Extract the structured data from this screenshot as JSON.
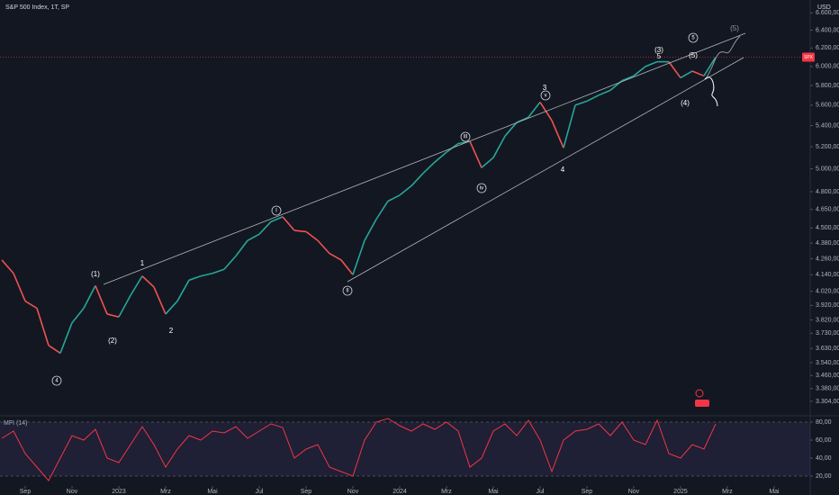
{
  "chart_data": [
    {
      "type": "line",
      "title": "S&P 500 Index, 1T, SP",
      "currency": "USD",
      "last_label": "SPX",
      "log_scale": true,
      "up_color": "#26a69a",
      "down_color": "#ef5350",
      "x": [
        -1,
        -0.5,
        0,
        0.5,
        1,
        1.5,
        2,
        2.5,
        3,
        3.5,
        4,
        4.5,
        5,
        5.5,
        6,
        6.5,
        7,
        7.5,
        8,
        8.5,
        9,
        9.5,
        10,
        10.5,
        11,
        11.5,
        12,
        12.5,
        13,
        13.5,
        14,
        14.5,
        15,
        15.5,
        16,
        16.5,
        17,
        17.5,
        18,
        18.5,
        19,
        19.5,
        20,
        20.5,
        21,
        21.5,
        22,
        22.5,
        23,
        23.5,
        24,
        24.5,
        25,
        25.5,
        26,
        26.5,
        27,
        27.5,
        28,
        28.5,
        29,
        29.5
      ],
      "values": [
        4250,
        4150,
        3950,
        3900,
        3650,
        3600,
        3800,
        3900,
        4060,
        3860,
        3840,
        3990,
        4130,
        4050,
        3860,
        3950,
        4100,
        4130,
        4150,
        4180,
        4280,
        4400,
        4450,
        4550,
        4590,
        4480,
        4470,
        4400,
        4300,
        4250,
        4140,
        4400,
        4570,
        4720,
        4770,
        4850,
        4960,
        5060,
        5150,
        5230,
        5250,
        5010,
        5100,
        5300,
        5430,
        5480,
        5630,
        5450,
        5190,
        5600,
        5640,
        5700,
        5750,
        5850,
        5900,
        6000,
        6050,
        6050,
        5880,
        5950,
        5900,
        6100
      ],
      "xlim": [
        -1.077,
        33.54
      ],
      "xticks": [
        {
          "value": 0,
          "label": "Sep"
        },
        {
          "value": 2,
          "label": "Nov"
        },
        {
          "value": 4,
          "label": "2023"
        },
        {
          "value": 6,
          "label": "Mrz"
        },
        {
          "value": 8,
          "label": "Mai"
        },
        {
          "value": 10,
          "label": "Jul"
        },
        {
          "value": 12,
          "label": "Sep"
        },
        {
          "value": 14,
          "label": "Nov"
        },
        {
          "value": 16,
          "label": "2024"
        },
        {
          "value": 18,
          "label": "Mrz"
        },
        {
          "value": 20,
          "label": "Mai"
        },
        {
          "value": 22,
          "label": "Jul"
        },
        {
          "value": 24,
          "label": "Sep"
        },
        {
          "value": 26,
          "label": "Nov"
        },
        {
          "value": 28,
          "label": "2025"
        },
        {
          "value": 30,
          "label": "Mrz"
        },
        {
          "value": 32,
          "label": "Mai"
        }
      ],
      "ylim": [
        3220,
        6700
      ],
      "yticks": [
        {
          "value": 6600,
          "label": "6.600,00"
        },
        {
          "value": 6400,
          "label": "6.400,00"
        },
        {
          "value": 6200,
          "label": "6.200,00"
        },
        {
          "value": 6000,
          "label": "6.000,00"
        },
        {
          "value": 5800,
          "label": "5.800,00"
        },
        {
          "value": 5600,
          "label": "5.600,00"
        },
        {
          "value": 5400,
          "label": "5.400,00"
        },
        {
          "value": 5200,
          "label": "5.200,00"
        },
        {
          "value": 5000,
          "label": "5.000,00"
        },
        {
          "value": 4800,
          "label": "4.800,00"
        },
        {
          "value": 4650,
          "label": "4.650,00"
        },
        {
          "value": 4500,
          "label": "4.500,00"
        },
        {
          "value": 4380,
          "label": "4.380,00"
        },
        {
          "value": 4260,
          "label": "4.260,00"
        },
        {
          "value": 4140,
          "label": "4.140,00"
        },
        {
          "value": 4020,
          "label": "4.020,00"
        },
        {
          "value": 3920,
          "label": "3.920,00"
        },
        {
          "value": 3820,
          "label": "3.820,00"
        },
        {
          "value": 3730,
          "label": "3.730,00"
        },
        {
          "value": 3630,
          "label": "3.630,00"
        },
        {
          "value": 3540,
          "label": "3.540,00"
        },
        {
          "value": 3460,
          "label": "3.460,00"
        },
        {
          "value": 3380,
          "label": "3.380,00"
        },
        {
          "value": 3304,
          "label": "3.304,00"
        }
      ],
      "wave_labels": [
        "(1)",
        "(2)",
        "1",
        "2",
        "4",
        "I",
        "II",
        "III",
        "iv",
        "v",
        "3",
        "4",
        "(3)",
        "5",
        "5",
        "(5)",
        "(4)",
        "(5)"
      ]
    },
    {
      "type": "line",
      "title": "MFI (14)",
      "color": "#f23645",
      "x": [
        -1,
        -0.5,
        0,
        0.5,
        1,
        1.5,
        2,
        2.5,
        3,
        3.5,
        4,
        4.5,
        5,
        5.5,
        6,
        6.5,
        7,
        7.5,
        8,
        8.5,
        9,
        9.5,
        10,
        10.5,
        11,
        11.5,
        12,
        12.5,
        13,
        13.5,
        14,
        14.5,
        15,
        15.5,
        16,
        16.5,
        17,
        17.5,
        18,
        18.5,
        19,
        19.5,
        20,
        20.5,
        21,
        21.5,
        22,
        22.5,
        23,
        23.5,
        24,
        24.5,
        25,
        25.5,
        26,
        26.5,
        27,
        27.5,
        28,
        28.5,
        29,
        29.5
      ],
      "values": [
        62,
        70,
        45,
        30,
        15,
        40,
        65,
        60,
        72,
        40,
        35,
        55,
        75,
        55,
        30,
        50,
        65,
        60,
        70,
        68,
        75,
        62,
        70,
        78,
        74,
        40,
        50,
        55,
        30,
        25,
        20,
        60,
        80,
        84,
        76,
        70,
        78,
        72,
        80,
        70,
        30,
        40,
        70,
        78,
        65,
        82,
        60,
        25,
        60,
        70,
        72,
        78,
        65,
        80,
        60,
        55,
        82,
        45,
        40,
        55,
        50,
        78
      ],
      "xlim": [
        -1.077,
        33.54
      ],
      "ylim": [
        9,
        86
      ],
      "band": [
        20,
        80
      ],
      "yticks": [
        {
          "value": 80,
          "label": "80,00"
        },
        {
          "value": 60,
          "label": "60,00"
        },
        {
          "value": 40,
          "label": "40,00"
        },
        {
          "value": 20,
          "label": "20,00"
        }
      ]
    }
  ]
}
